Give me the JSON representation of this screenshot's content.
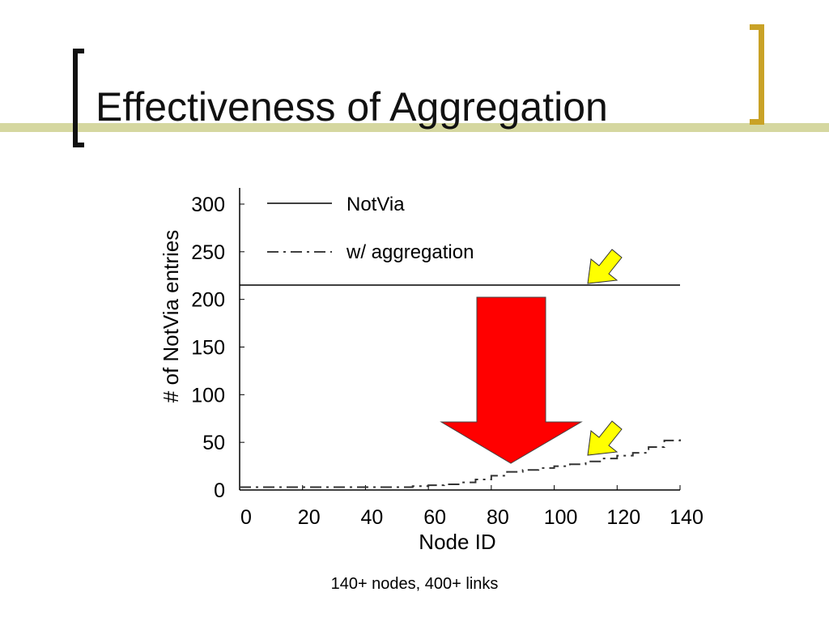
{
  "slide": {
    "title": "Effectiveness of Aggregation",
    "caption": "140+ nodes, 400+ links"
  },
  "colors": {
    "accent_bar": "#d5d7a0",
    "bracket_gold": "#c9a227",
    "big_arrow": "#ff0000",
    "callout_arrow": "#ffff00"
  },
  "chart_data": {
    "type": "line",
    "xlabel": "Node ID",
    "ylabel": "# of NotVia entries",
    "xlim": [
      0,
      140
    ],
    "ylim": [
      0,
      300
    ],
    "xticks": [
      0,
      20,
      40,
      60,
      80,
      100,
      120,
      140
    ],
    "yticks": [
      0,
      50,
      100,
      150,
      200,
      250,
      300
    ],
    "legend_position": "top-left",
    "grid": false,
    "series": [
      {
        "name": "NotVia",
        "style": "solid",
        "x": [
          0,
          140
        ],
        "y": [
          215,
          215
        ]
      },
      {
        "name": "w/ aggregation",
        "style": "dash-dot",
        "x": [
          0,
          20,
          40,
          55,
          60,
          65,
          70,
          75,
          80,
          85,
          90,
          95,
          100,
          105,
          110,
          115,
          120,
          125,
          130,
          135,
          140
        ],
        "y": [
          3,
          3,
          3,
          4,
          5,
          6,
          8,
          11,
          15,
          19,
          21,
          23,
          25,
          27,
          30,
          33,
          36,
          39,
          45,
          52,
          56
        ]
      }
    ]
  }
}
